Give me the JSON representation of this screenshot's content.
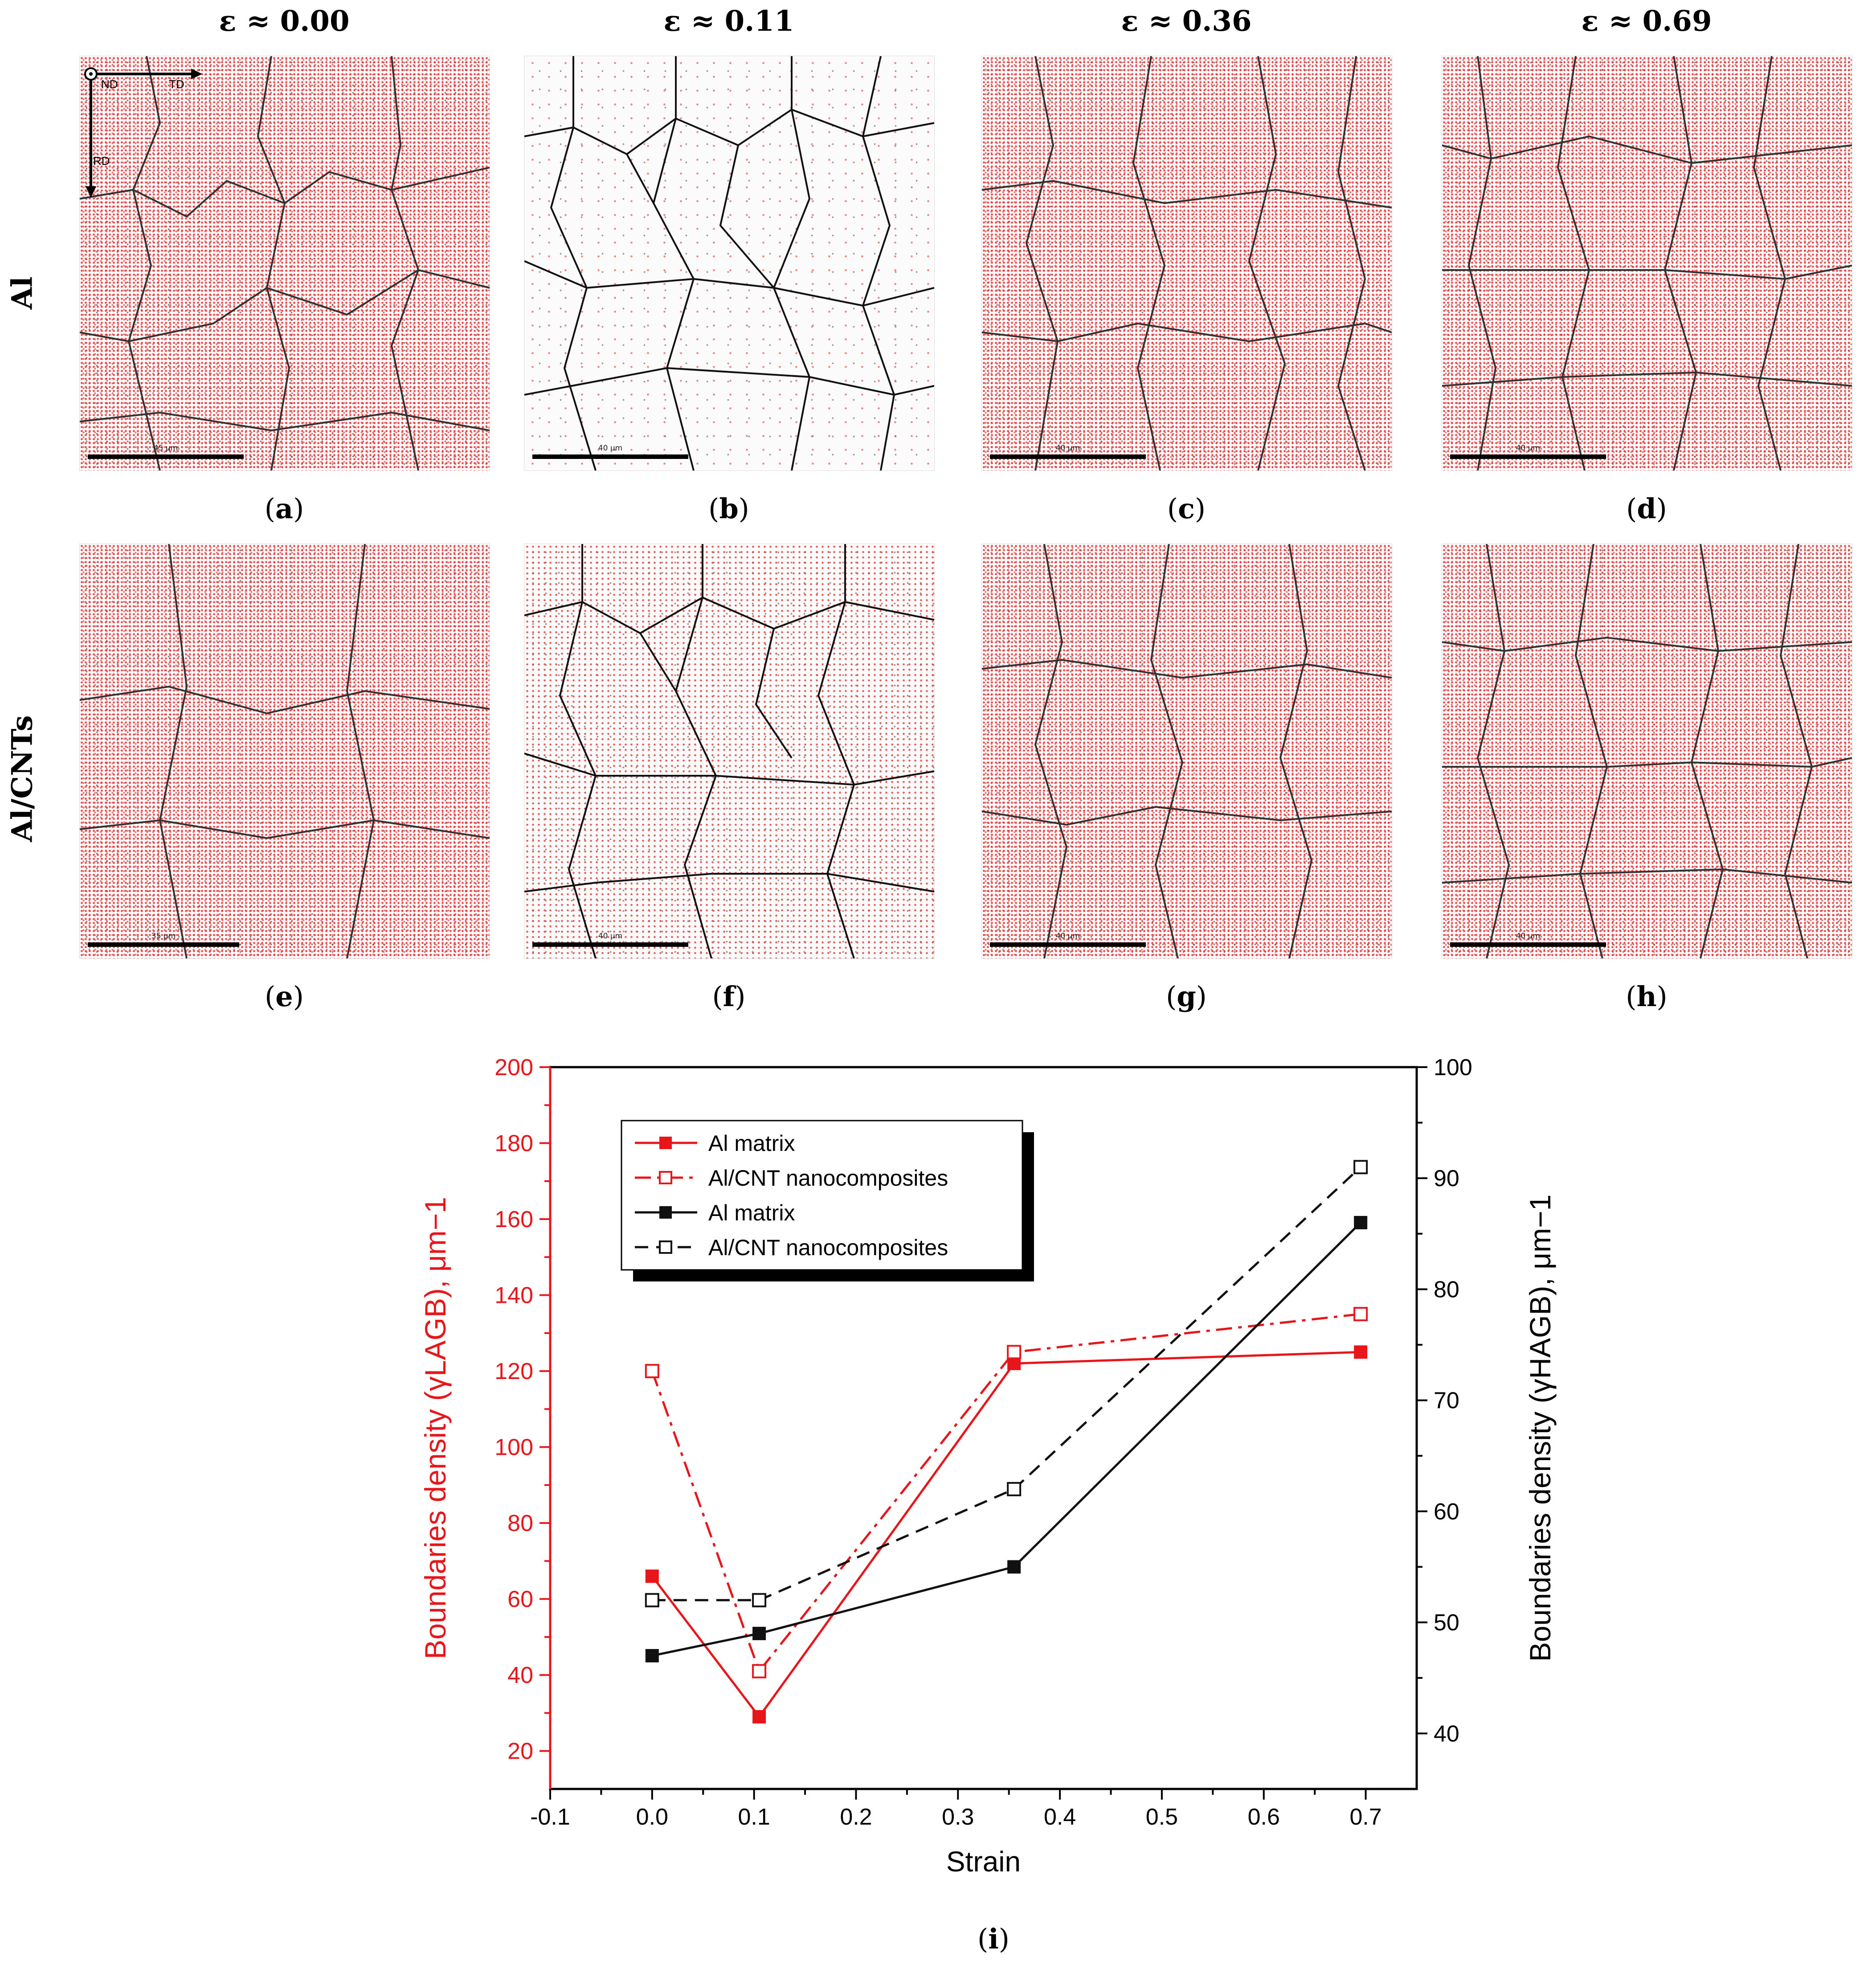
{
  "column_titles": [
    "ε ≈ 0.00",
    "ε ≈ 0.11",
    "ε ≈ 0.36",
    "ε ≈ 0.69"
  ],
  "row_labels": [
    "Al",
    "Al/CNTs"
  ],
  "panels": [
    {
      "label": "a",
      "scale": "45 μm",
      "axes": {
        "nd": "ND",
        "td": "TD",
        "rd": "RD"
      }
    },
    {
      "label": "b",
      "scale": "40 μm"
    },
    {
      "label": "c",
      "scale": "40 μm"
    },
    {
      "label": "d",
      "scale": "40 μm"
    },
    {
      "label": "e",
      "scale": "35 μm"
    },
    {
      "label": "f",
      "scale": "40 μm"
    },
    {
      "label": "g",
      "scale": "40 μm"
    },
    {
      "label": "h",
      "scale": "40 μm"
    }
  ],
  "chart_panel_label": "i",
  "colors": {
    "lagb": "#e8161b",
    "hagb": "#111111"
  },
  "chart_data": {
    "type": "line",
    "xlabel": "Strain",
    "ylabel_left": "Boundaries density (γLAGB), μm−1",
    "ylabel_right": "Boundaries density (γHAGB), μm−1",
    "xlim": [
      -0.1,
      0.75
    ],
    "xticks": [
      "-0.1",
      "0.0",
      "0.1",
      "0.2",
      "0.3",
      "0.4",
      "0.5",
      "0.6",
      "0.7"
    ],
    "ylim_left": [
      10,
      200
    ],
    "yticks_left": [
      "20",
      "40",
      "60",
      "80",
      "100",
      "120",
      "140",
      "160",
      "180",
      "200"
    ],
    "ylim_right": [
      35,
      100
    ],
    "yticks_right": [
      "40",
      "50",
      "60",
      "70",
      "80",
      "90",
      "100"
    ],
    "legend_position": "top-left",
    "series": [
      {
        "name": "Al matrix",
        "axis": "left",
        "color": "#e8161b",
        "marker": "filled-square",
        "line": "solid",
        "x": [
          0.0,
          0.105,
          0.355,
          0.695
        ],
        "y": [
          66,
          29,
          122,
          125
        ]
      },
      {
        "name": "Al/CNT nanocomposites",
        "axis": "left",
        "color": "#e8161b",
        "marker": "open-square",
        "line": "dashdot",
        "x": [
          0.0,
          0.105,
          0.355,
          0.695
        ],
        "y": [
          120,
          41,
          125,
          135
        ]
      },
      {
        "name": "Al matrix",
        "axis": "right",
        "color": "#111111",
        "marker": "filled-square",
        "line": "solid",
        "x": [
          0.0,
          0.105,
          0.355,
          0.695
        ],
        "y": [
          47,
          49,
          55,
          86
        ]
      },
      {
        "name": "Al/CNT nanocomposites",
        "axis": "right",
        "color": "#111111",
        "marker": "open-square",
        "line": "dash",
        "x": [
          0.0,
          0.105,
          0.355,
          0.695
        ],
        "y": [
          52,
          52,
          62,
          91
        ]
      }
    ]
  }
}
